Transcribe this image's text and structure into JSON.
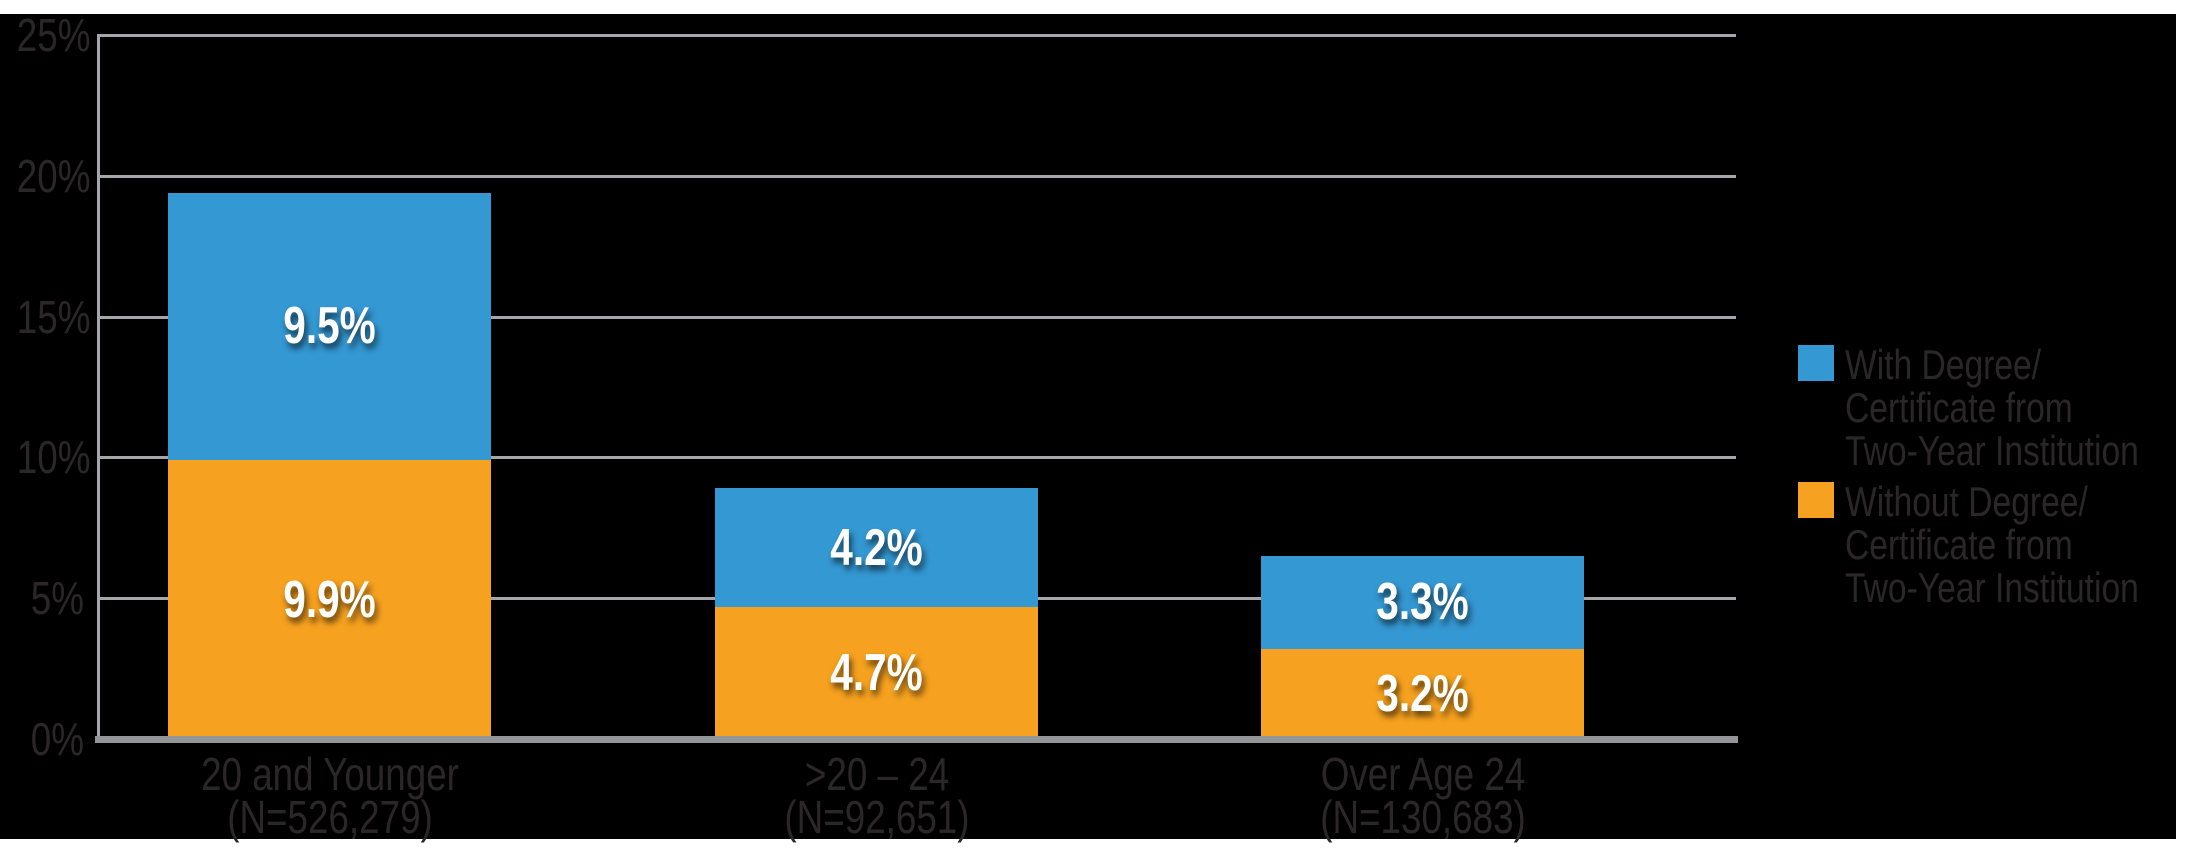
{
  "chart_data": {
    "type": "bar",
    "stacked": true,
    "title": "",
    "categories": [
      "20 and Younger",
      ">20 – 24",
      "Over Age 24"
    ],
    "category_sublabels": [
      "(N=526,279)",
      "(N=92,651)",
      "(N=130,683)"
    ],
    "series": [
      {
        "name": "With Degree/Certificate from Two-Year Institution",
        "legend_lines": [
          "With Degree/",
          "Certificate from",
          "Two-Year Institution"
        ],
        "color": "#3498D3",
        "stack_position": "top",
        "values": [
          9.5,
          4.2,
          3.3
        ],
        "value_labels": [
          "9.5%",
          "4.2%",
          "3.3%"
        ]
      },
      {
        "name": "Without Degree/Certificate from Two-Year Institution",
        "legend_lines": [
          "Without Degree/",
          "Certificate from",
          "Two-Year Institution"
        ],
        "color": "#F6A11F",
        "stack_position": "bottom",
        "values": [
          9.9,
          4.7,
          3.2
        ],
        "value_labels": [
          "9.9%",
          "4.7%",
          "3.2%"
        ]
      }
    ],
    "ylim": [
      0,
      25
    ],
    "yticks": [
      25,
      20,
      15,
      10,
      5,
      0
    ],
    "ytick_labels": [
      "25%",
      "20%",
      "15%",
      "10%",
      "5%",
      "0%"
    ],
    "grid": true,
    "legend_position": "right",
    "colors": {
      "chart_background": "#000000",
      "page_background": "#FFFFFF",
      "grid": "#A4A6A9",
      "axis_baseline": "#939598",
      "tick_text": "#2B2728",
      "value_label_text": "#FFFFFF"
    }
  }
}
